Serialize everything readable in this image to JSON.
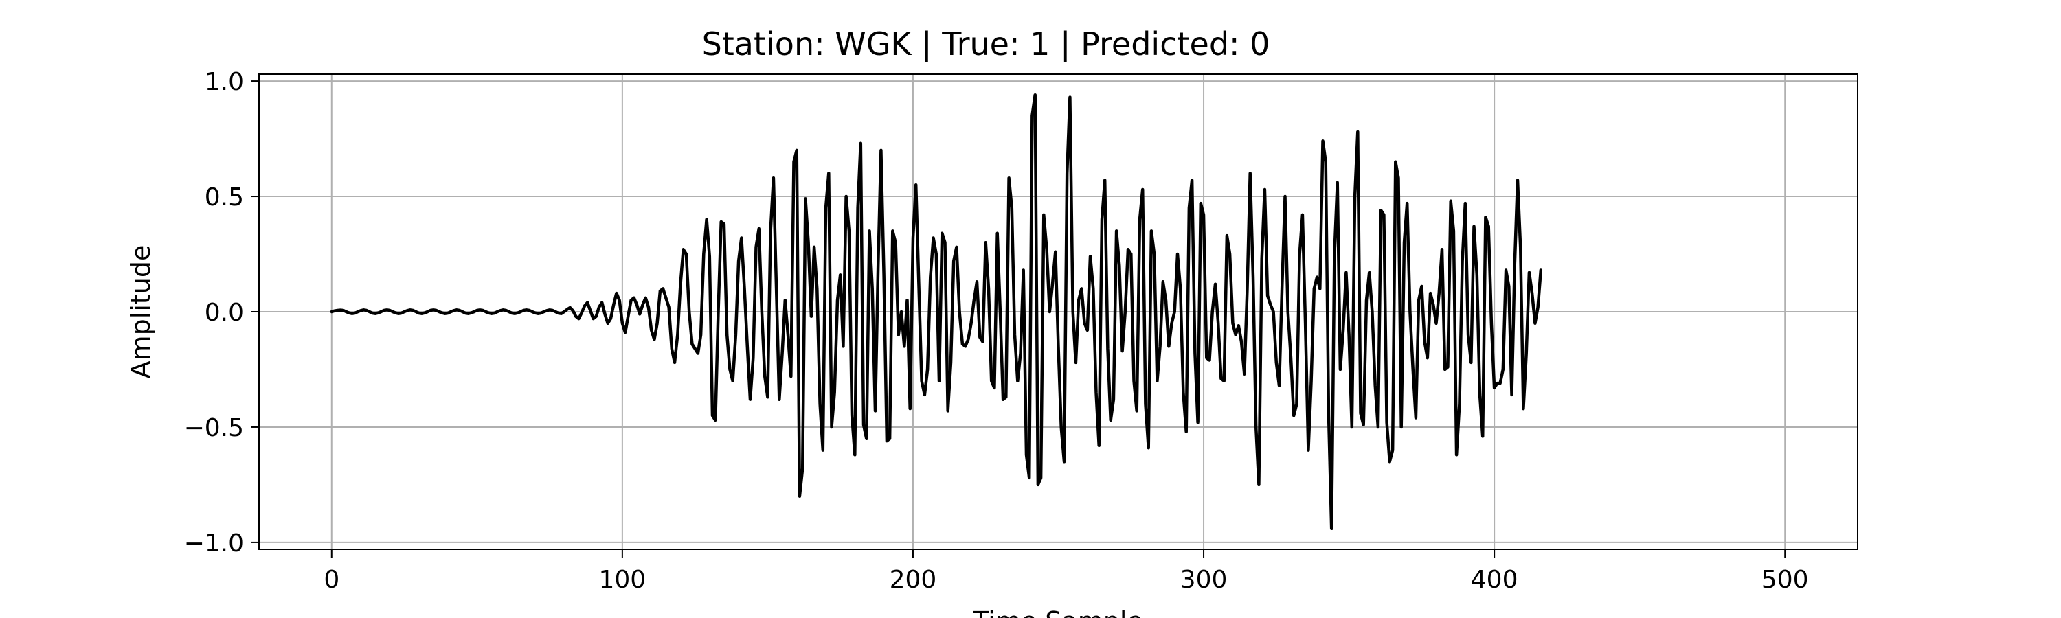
{
  "chart_data": {
    "type": "line",
    "title": "Station: WGK | True: 1 | Predicted: 0",
    "xlabel": "Time Sample",
    "ylabel": "Amplitude",
    "xlim": [
      -25,
      525
    ],
    "ylim": [
      -1.03,
      1.03
    ],
    "x_ticks": [
      0,
      100,
      200,
      300,
      400,
      500
    ],
    "x_tick_labels": [
      "0",
      "100",
      "200",
      "300",
      "400",
      "500"
    ],
    "y_ticks": [
      1.0,
      0.5,
      0.0,
      -0.5,
      -1.0
    ],
    "y_tick_labels": [
      "1.0",
      "0.5",
      "0.0",
      "−0.5",
      "−1.0"
    ],
    "grid": true,
    "line_color": "#000000",
    "grid_color": "#b0b0b0",
    "series": [
      {
        "x_start": 0,
        "x_step": 1,
        "values": [
          0.0,
          0.004,
          0.006,
          0.007,
          0.006,
          0.0,
          -0.005,
          -0.008,
          -0.006,
          0.0,
          0.005,
          0.008,
          0.006,
          0.0,
          -0.006,
          -0.008,
          -0.005,
          0.0,
          0.006,
          0.008,
          0.006,
          0.0,
          -0.005,
          -0.008,
          -0.006,
          0.0,
          0.005,
          0.008,
          0.006,
          0.0,
          -0.006,
          -0.008,
          -0.005,
          0.0,
          0.006,
          0.008,
          0.006,
          0.0,
          -0.005,
          -0.008,
          -0.006,
          0.0,
          0.005,
          0.008,
          0.006,
          0.0,
          -0.006,
          -0.008,
          -0.005,
          0.0,
          0.006,
          0.008,
          0.006,
          0.0,
          -0.005,
          -0.008,
          -0.006,
          0.0,
          0.005,
          0.008,
          0.006,
          0.0,
          -0.006,
          -0.008,
          -0.005,
          0.0,
          0.006,
          0.008,
          0.006,
          0.0,
          -0.005,
          -0.008,
          -0.006,
          0.0,
          0.005,
          0.008,
          0.006,
          0.0,
          -0.006,
          -0.008,
          0.0,
          0.01,
          0.018,
          0.005,
          -0.02,
          -0.03,
          -0.005,
          0.025,
          0.04,
          0.005,
          -0.03,
          -0.02,
          0.02,
          0.04,
          -0.01,
          -0.05,
          -0.03,
          0.03,
          0.08,
          0.05,
          -0.05,
          -0.09,
          -0.02,
          0.05,
          0.06,
          0.03,
          -0.01,
          0.03,
          0.06,
          0.02,
          -0.08,
          -0.12,
          -0.05,
          0.09,
          0.1,
          0.06,
          0.02,
          -0.16,
          -0.22,
          -0.1,
          0.12,
          0.27,
          0.25,
          0.0,
          -0.14,
          -0.16,
          -0.18,
          -0.1,
          0.25,
          0.4,
          0.24,
          -0.45,
          -0.47,
          0.0,
          0.39,
          0.38,
          -0.1,
          -0.25,
          -0.3,
          -0.1,
          0.22,
          0.32,
          0.1,
          -0.15,
          -0.38,
          -0.2,
          0.28,
          0.36,
          0.0,
          -0.28,
          -0.37,
          0.35,
          0.58,
          0.1,
          -0.38,
          -0.18,
          0.05,
          -0.1,
          -0.28,
          0.65,
          0.7,
          -0.8,
          -0.68,
          0.49,
          0.3,
          -0.02,
          0.28,
          0.1,
          -0.4,
          -0.6,
          0.45,
          0.6,
          -0.5,
          -0.35,
          0.05,
          0.16,
          -0.15,
          0.5,
          0.35,
          -0.45,
          -0.62,
          0.45,
          0.73,
          -0.49,
          -0.55,
          0.35,
          0.1,
          -0.43,
          0.2,
          0.7,
          0.16,
          -0.56,
          -0.55,
          0.35,
          0.3,
          -0.1,
          0.0,
          -0.15,
          0.05,
          -0.42,
          0.32,
          0.55,
          0.12,
          -0.3,
          -0.36,
          -0.25,
          0.15,
          0.32,
          0.25,
          -0.3,
          0.34,
          0.3,
          -0.43,
          -0.22,
          0.22,
          0.28,
          0.0,
          -0.14,
          -0.15,
          -0.12,
          -0.05,
          0.05,
          0.13,
          -0.11,
          -0.13,
          0.3,
          0.1,
          -0.3,
          -0.33,
          0.34,
          0.0,
          -0.38,
          -0.37,
          0.58,
          0.45,
          -0.1,
          -0.3,
          -0.18,
          0.18,
          -0.62,
          -0.72,
          0.85,
          0.94,
          -0.75,
          -0.72,
          0.42,
          0.27,
          0.0,
          0.12,
          0.26,
          -0.15,
          -0.5,
          -0.65,
          0.6,
          0.93,
          0.0,
          -0.22,
          0.05,
          0.1,
          -0.05,
          -0.08,
          0.24,
          0.1,
          -0.35,
          -0.58,
          0.4,
          0.57,
          -0.16,
          -0.47,
          -0.38,
          0.35,
          0.2,
          -0.17,
          0.0,
          0.27,
          0.25,
          -0.3,
          -0.43,
          0.4,
          0.53,
          -0.4,
          -0.59,
          0.35,
          0.25,
          -0.3,
          -0.15,
          0.13,
          0.05,
          -0.15,
          -0.05,
          0.0,
          0.25,
          0.1,
          -0.35,
          -0.52,
          0.45,
          0.57,
          -0.18,
          -0.48,
          0.47,
          0.42,
          -0.2,
          -0.21,
          0.0,
          0.12,
          -0.05,
          -0.29,
          -0.3,
          0.33,
          0.25,
          -0.05,
          -0.1,
          -0.06,
          -0.13,
          -0.27,
          0.1,
          0.6,
          0.15,
          -0.5,
          -0.75,
          0.23,
          0.53,
          0.07,
          0.03,
          0.0,
          -0.22,
          -0.32,
          0.12,
          0.5,
          0.0,
          -0.2,
          -0.45,
          -0.4,
          0.25,
          0.42,
          -0.05,
          -0.6,
          -0.3,
          0.1,
          0.15,
          0.1,
          0.74,
          0.65,
          -0.45,
          -0.94,
          0.25,
          0.56,
          -0.25,
          -0.08,
          0.17,
          -0.1,
          -0.5,
          0.5,
          0.78,
          -0.44,
          -0.49,
          0.05,
          0.17,
          0.0,
          -0.32,
          -0.5,
          0.44,
          0.42,
          -0.48,
          -0.65,
          -0.6,
          0.65,
          0.58,
          -0.5,
          0.3,
          0.47,
          0.0,
          -0.25,
          -0.46,
          0.05,
          0.11,
          -0.13,
          -0.2,
          0.08,
          0.03,
          -0.05,
          0.08,
          0.27,
          -0.25,
          -0.24,
          0.48,
          0.35,
          -0.62,
          -0.4,
          0.22,
          0.47,
          -0.1,
          -0.22,
          0.37,
          0.16,
          -0.36,
          -0.54,
          0.41,
          0.37,
          -0.05,
          -0.33,
          -0.31,
          -0.31,
          -0.25,
          0.18,
          0.11,
          -0.36,
          0.21,
          0.57,
          0.28,
          -0.42,
          -0.18,
          0.17,
          0.08,
          -0.05,
          0.02,
          0.18
        ]
      }
    ]
  }
}
